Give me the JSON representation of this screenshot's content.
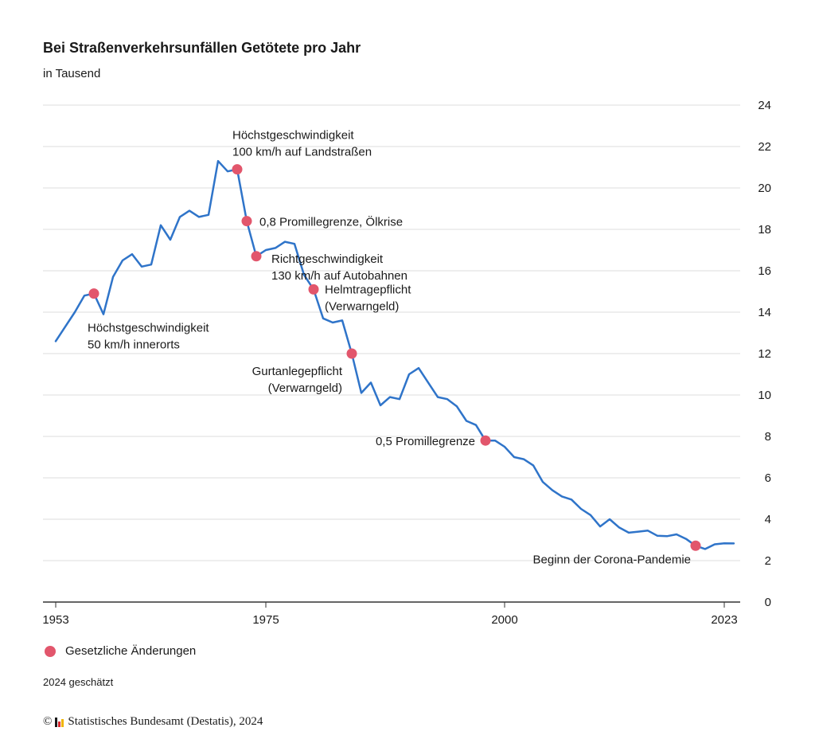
{
  "header": {
    "title": "Bei Straßenverkehrsunfällen Getötete pro Jahr",
    "subtitle": "in Tausend"
  },
  "colors": {
    "line": "#2f74c9",
    "marker": "#e2566c",
    "grid": "#dddddd",
    "axis": "#333333",
    "text": "#1a1a1a"
  },
  "chart_data": {
    "type": "line",
    "title": "Bei Straßenverkehrsunfällen Getötete pro Jahr",
    "subtitle": "in Tausend",
    "xlabel": "",
    "ylabel": "",
    "xlim": [
      1953,
      2024
    ],
    "ylim": [
      0,
      24
    ],
    "x_ticks": [
      "1953",
      "1975",
      "2000",
      "2023"
    ],
    "y_ticks": [
      "0",
      "2",
      "4",
      "6",
      "8",
      "10",
      "12",
      "14",
      "16",
      "18",
      "20",
      "22",
      "24"
    ],
    "y_axis_position": "right",
    "grid": true,
    "series": [
      {
        "x": [
          1953,
          1954,
          1955,
          1956,
          1957,
          1958,
          1959,
          1960,
          1961,
          1962,
          1963,
          1964,
          1965,
          1966,
          1967,
          1968,
          1969,
          1970,
          1971,
          1972,
          1973,
          1974,
          1975,
          1976,
          1977,
          1978,
          1979,
          1980,
          1981,
          1982,
          1983,
          1984,
          1985,
          1986,
          1987,
          1988,
          1989,
          1990,
          1991,
          1992,
          1993,
          1994,
          1995,
          1996,
          1997,
          1998,
          1999,
          2000,
          2001,
          2002,
          2003,
          2004,
          2005,
          2006,
          2007,
          2008,
          2009,
          2010,
          2011,
          2012,
          2013,
          2014,
          2015,
          2016,
          2017,
          2018,
          2019,
          2020,
          2021,
          2022,
          2023,
          2024
        ],
        "y": [
          12.6,
          13.3,
          14.0,
          14.8,
          14.9,
          13.9,
          15.7,
          16.5,
          16.8,
          16.2,
          16.3,
          18.2,
          17.5,
          18.6,
          18.9,
          18.6,
          18.7,
          21.3,
          20.8,
          20.9,
          18.4,
          16.7,
          17.0,
          17.1,
          17.4,
          17.3,
          15.8,
          15.1,
          13.7,
          13.5,
          13.6,
          12.0,
          10.1,
          10.6,
          9.5,
          9.9,
          9.8,
          11.0,
          11.3,
          10.6,
          9.9,
          9.8,
          9.45,
          8.75,
          8.55,
          7.8,
          7.8,
          7.5,
          7.0,
          6.9,
          6.6,
          5.8,
          5.4,
          5.1,
          4.95,
          4.5,
          4.2,
          3.65,
          4.0,
          3.6,
          3.35,
          3.4,
          3.45,
          3.2,
          3.18,
          3.27,
          3.05,
          2.72,
          2.56,
          2.79,
          2.84,
          2.83
        ]
      }
    ],
    "annotations": [
      {
        "x": 1957,
        "y": 14.9,
        "lines": [
          "Höchstgeschwindigkeit",
          "50 km/h innerorts"
        ]
      },
      {
        "x": 1972,
        "y": 20.9,
        "lines": [
          "Höchstgeschwindigkeit",
          "100 km/h auf Landstraßen"
        ]
      },
      {
        "x": 1973,
        "y": 18.4,
        "lines": [
          "0,8 Promillegrenze, Ölkrise"
        ]
      },
      {
        "x": 1974,
        "y": 16.7,
        "lines": [
          "Richtgeschwindigkeit",
          "130 km/h auf Autobahnen"
        ]
      },
      {
        "x": 1980,
        "y": 15.1,
        "lines": [
          "Helmtragepflicht",
          "(Verwarngeld)"
        ]
      },
      {
        "x": 1984,
        "y": 12.0,
        "lines": [
          "Gurtanlegepflicht",
          "(Verwarngeld)"
        ]
      },
      {
        "x": 1998,
        "y": 7.8,
        "lines": [
          "0,5 Promillegrenze"
        ]
      },
      {
        "x": 2020,
        "y": 2.72,
        "lines": [
          "Beginn der Corona-Pandemie"
        ]
      }
    ]
  },
  "legend": {
    "label": "Gesetzliche Änderungen"
  },
  "footer": {
    "note": "2024 geschätzt",
    "source_copyright": "©",
    "source_text": "Statistisches Bundesamt (Destatis), 2024"
  }
}
